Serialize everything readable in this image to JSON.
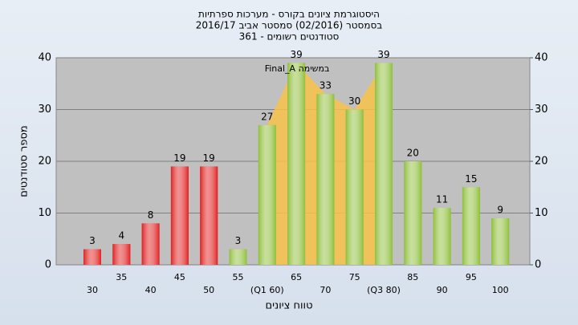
{
  "chart_data": {
    "type": "bar",
    "title": [
      "היסטוגרמת ציונים בקורס - מערכות ספרתיות",
      "בסמסטר  (02/2016)  סמסטר אביב 2016/17",
      "סטודנטים רשומים - 361"
    ],
    "annotation": "Final_A במשימה",
    "x_label": "טווח ציונים",
    "y_label": "מספר סטודנטים",
    "categories": [
      "30",
      "35",
      "40",
      "45",
      "50",
      "55",
      "(Q1 60)",
      "65",
      "70",
      "75",
      "(Q3 80)",
      "85",
      "90",
      "95",
      "100"
    ],
    "values": [
      3,
      4,
      8,
      19,
      19,
      3,
      27,
      39,
      33,
      30,
      39,
      20,
      11,
      15,
      9
    ],
    "colors": [
      "#e02020",
      "#e02020",
      "#e02020",
      "#e02020",
      "#e02020",
      "#8fbf3a",
      "#8fbf3a",
      "#8fbf3a",
      "#8fbf3a",
      "#8fbf3a",
      "#8fbf3a",
      "#8fbf3a",
      "#8fbf3a",
      "#8fbf3a",
      "#8fbf3a"
    ],
    "ylim": [
      0,
      40
    ],
    "yticks": [
      0,
      10,
      20,
      30,
      40
    ],
    "y2lim": [
      0,
      40
    ],
    "y2ticks": [
      0,
      10,
      20,
      30,
      40
    ],
    "grid": true
  }
}
